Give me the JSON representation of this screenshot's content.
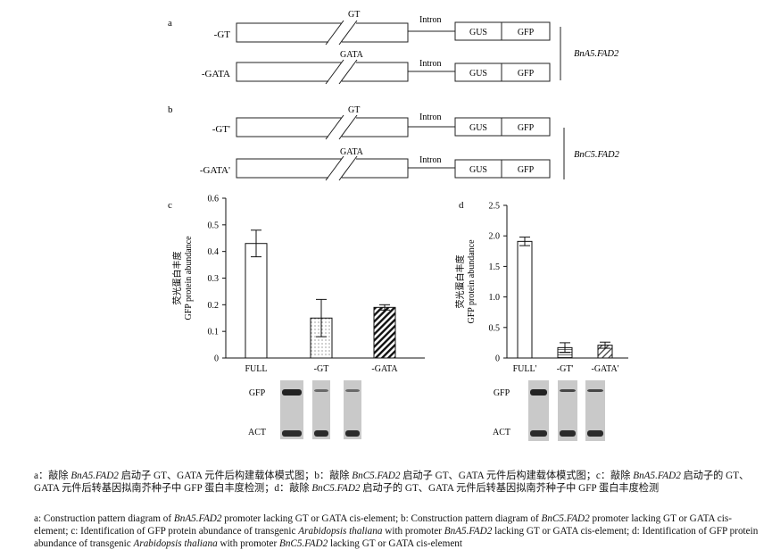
{
  "panels": {
    "a": {
      "label": "a",
      "gene": "BnA5.FAD2",
      "rows": [
        {
          "name": "-GT",
          "element": "GT",
          "intron": "Intron",
          "gus": "GUS",
          "gfp": "GFP"
        },
        {
          "name": "-GATA",
          "element": "GATA",
          "intron": "Intron",
          "gus": "GUS",
          "gfp": "GFP"
        }
      ]
    },
    "b": {
      "label": "b",
      "gene": "BnC5.FAD2",
      "rows": [
        {
          "name": "-GT'",
          "element": "GT",
          "intron": "Intron",
          "gus": "GUS",
          "gfp": "GFP"
        },
        {
          "name": "-GATA'",
          "element": "GATA",
          "intron": "Intron",
          "gus": "GUS",
          "gfp": "GFP"
        }
      ]
    }
  },
  "chart_data": [
    {
      "panel": "c",
      "type": "bar",
      "ylabel_zh": "荧光蛋白丰度",
      "ylabel_en": "GFP protein abundance",
      "categories": [
        "FULL",
        "-GT",
        "-GATA"
      ],
      "values": [
        0.43,
        0.15,
        0.19
      ],
      "errors": [
        0.05,
        0.07,
        0.01
      ],
      "patterns": [
        "none",
        "dots",
        "hatch"
      ],
      "ylim": [
        0,
        0.6
      ],
      "yticks": [
        "0",
        "0.1",
        "0.2",
        "0.3",
        "0.4",
        "0.5",
        "0.6"
      ],
      "blot_labels": [
        "GFP",
        "ACT"
      ]
    },
    {
      "panel": "d",
      "type": "bar",
      "ylabel_zh": "荧光蛋白丰度",
      "ylabel_en": "GFP protein abundance",
      "categories": [
        "FULL'",
        "-GT'",
        "-GATA'"
      ],
      "values": [
        1.91,
        0.17,
        0.21
      ],
      "errors": [
        0.07,
        0.08,
        0.05
      ],
      "patterns": [
        "none",
        "hlines",
        "hatch"
      ],
      "ylim": [
        0,
        2.5
      ],
      "yticks": [
        "0",
        "0.5",
        "1.0",
        "1.5",
        "2.0",
        "2.5"
      ],
      "blot_labels": [
        "GFP",
        "ACT"
      ]
    }
  ],
  "caption": {
    "zh": [
      {
        "t": "a：敲除 "
      },
      {
        "t": "BnA5.FAD2",
        "i": true
      },
      {
        "t": " 启动子 GT、GATA 元件后构建载体模式图；b：敲除 "
      },
      {
        "t": "BnC5.FAD2",
        "i": true
      },
      {
        "t": " 启动子 GT、GATA 元件后构建载体模式图；c：敲除 "
      },
      {
        "t": "BnA5.FAD2",
        "i": true
      },
      {
        "t": " 启动子的 GT、GATA 元件后转基因拟南芥种子中 GFP 蛋白丰度检测；d：敲除 "
      },
      {
        "t": "BnC5.FAD2",
        "i": true
      },
      {
        "t": " 启动子的 GT、GATA 元件后转基因拟南芥种子中 GFP 蛋白丰度检测"
      }
    ],
    "en": [
      {
        "t": "a: Construction pattern diagram of "
      },
      {
        "t": "BnA5.FAD2",
        "i": true
      },
      {
        "t": " promoter lacking GT or GATA cis-element; b: Construction pattern diagram of "
      },
      {
        "t": "BnC5.FAD2",
        "i": true
      },
      {
        "t": " promoter lacking GT or GATA cis-element; c: Identification of GFP protein abundance of transgenic "
      },
      {
        "t": "Arabidopsis thaliana",
        "i": true
      },
      {
        "t": " with promoter "
      },
      {
        "t": "BnA5.FAD2",
        "i": true
      },
      {
        "t": " lacking GT or GATA cis-element; d: Identification of GFP protein abundance of transgenic "
      },
      {
        "t": "Arabidopsis thaliana",
        "i": true
      },
      {
        "t": " with promoter "
      },
      {
        "t": "BnC5.FAD2",
        "i": true
      },
      {
        "t": " lacking GT or GATA cis-element"
      }
    ]
  }
}
